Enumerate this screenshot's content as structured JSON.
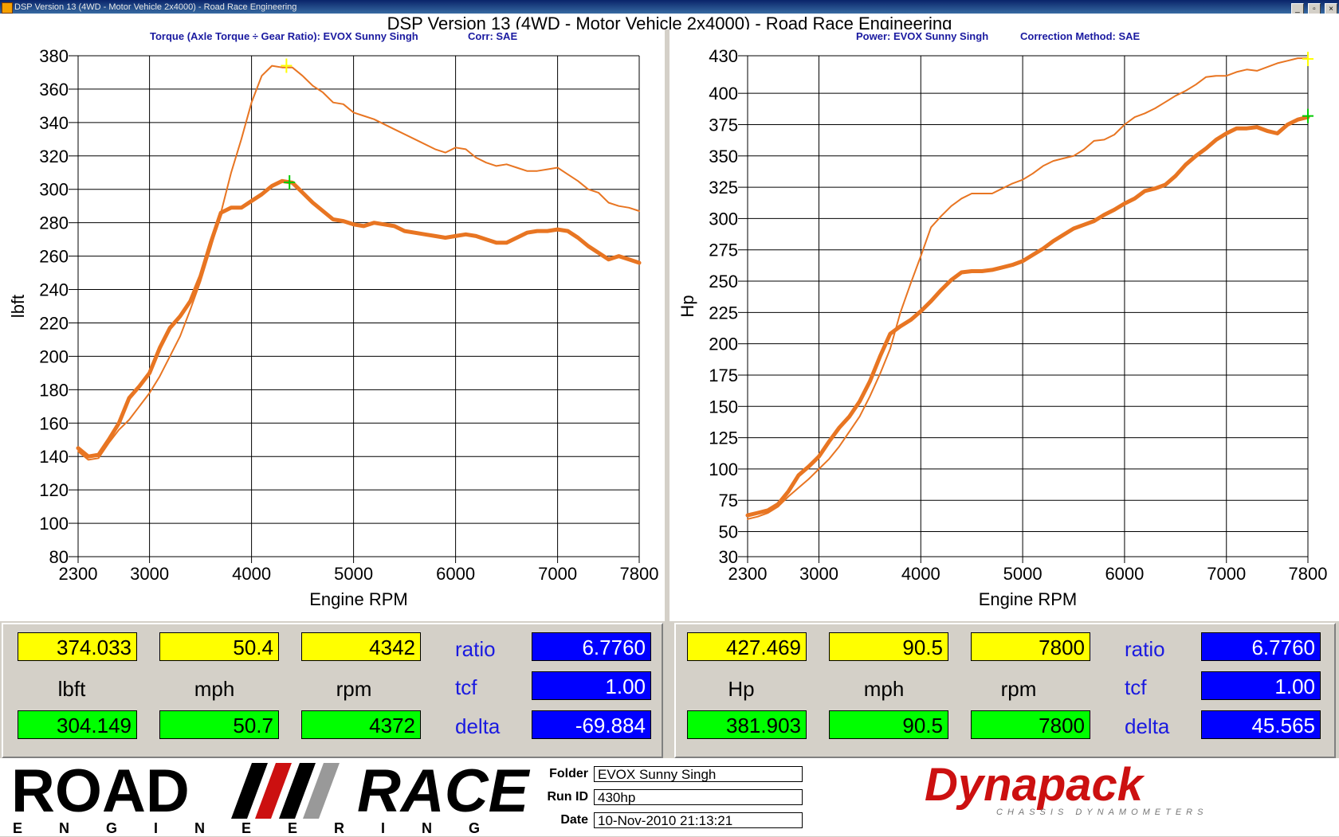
{
  "window": {
    "title": "DSP Version 13 (4WD - Motor Vehicle 2x4000) - Road Race Engineering",
    "buttons": [
      "_",
      "▫",
      "×"
    ]
  },
  "main_title": "DSP Version 13 (4WD - Motor Vehicle 2x4000) - Road Race Engineering",
  "left_subtitle": {
    "a": "Torque (Axle Torque ÷ Gear Ratio): EVOX Sunny Singh",
    "b": "Corr: SAE"
  },
  "right_subtitle": {
    "a": "Power: EVOX Sunny Singh",
    "b": "Correction Method: SAE"
  },
  "chart_data": [
    {
      "type": "line",
      "title": "",
      "xlabel": "Engine RPM",
      "ylabel": "lbft",
      "xlim": [
        2300,
        7800
      ],
      "ylim": [
        80,
        380
      ],
      "xticks": [
        2300,
        3000,
        4000,
        5000,
        6000,
        7000,
        7800
      ],
      "yticks": [
        80,
        100,
        120,
        140,
        160,
        180,
        200,
        220,
        240,
        260,
        280,
        300,
        320,
        340,
        360,
        380
      ],
      "grid": true,
      "color": "#e87522",
      "series": [
        {
          "width": 2,
          "points": [
            [
              2300,
              143
            ],
            [
              2400,
              138
            ],
            [
              2500,
              139
            ],
            [
              2600,
              148
            ],
            [
              2700,
              156
            ],
            [
              2800,
              162
            ],
            [
              2900,
              170
            ],
            [
              3000,
              178
            ],
            [
              3100,
              188
            ],
            [
              3200,
              200
            ],
            [
              3300,
              212
            ],
            [
              3400,
              228
            ],
            [
              3500,
              245
            ],
            [
              3600,
              265
            ],
            [
              3700,
              286
            ],
            [
              3800,
              310
            ],
            [
              3900,
              330
            ],
            [
              4000,
              352
            ],
            [
              4100,
              368
            ],
            [
              4200,
              374
            ],
            [
              4300,
              373
            ],
            [
              4400,
              373
            ],
            [
              4500,
              368
            ],
            [
              4600,
              362
            ],
            [
              4700,
              358
            ],
            [
              4800,
              352
            ],
            [
              4900,
              351
            ],
            [
              5000,
              346
            ],
            [
              5100,
              344
            ],
            [
              5200,
              342
            ],
            [
              5400,
              336
            ],
            [
              5600,
              330
            ],
            [
              5800,
              324
            ],
            [
              5900,
              322
            ],
            [
              6000,
              325
            ],
            [
              6100,
              324
            ],
            [
              6200,
              319
            ],
            [
              6300,
              316
            ],
            [
              6400,
              314
            ],
            [
              6500,
              315
            ],
            [
              6600,
              313
            ],
            [
              6700,
              311
            ],
            [
              6800,
              311
            ],
            [
              6900,
              312
            ],
            [
              7000,
              313
            ],
            [
              7100,
              309
            ],
            [
              7200,
              305
            ],
            [
              7300,
              300
            ],
            [
              7400,
              298
            ],
            [
              7500,
              292
            ],
            [
              7600,
              290
            ],
            [
              7700,
              289
            ],
            [
              7800,
              287
            ]
          ]
        },
        {
          "width": 5,
          "points": [
            [
              2300,
              145
            ],
            [
              2400,
              140
            ],
            [
              2500,
              141
            ],
            [
              2600,
              150
            ],
            [
              2700,
              160
            ],
            [
              2800,
              175
            ],
            [
              2900,
              182
            ],
            [
              3000,
              190
            ],
            [
              3100,
              205
            ],
            [
              3200,
              217
            ],
            [
              3300,
              224
            ],
            [
              3400,
              233
            ],
            [
              3500,
              248
            ],
            [
              3600,
              268
            ],
            [
              3700,
              286
            ],
            [
              3800,
              289
            ],
            [
              3900,
              289
            ],
            [
              4000,
              293
            ],
            [
              4100,
              297
            ],
            [
              4200,
              302
            ],
            [
              4300,
              305
            ],
            [
              4400,
              304
            ],
            [
              4500,
              298
            ],
            [
              4600,
              292
            ],
            [
              4700,
              287
            ],
            [
              4800,
              282
            ],
            [
              4900,
              281
            ],
            [
              5000,
              279
            ],
            [
              5100,
              278
            ],
            [
              5200,
              280
            ],
            [
              5300,
              279
            ],
            [
              5400,
              278
            ],
            [
              5500,
              275
            ],
            [
              5600,
              274
            ],
            [
              5700,
              273
            ],
            [
              5800,
              272
            ],
            [
              5900,
              271
            ],
            [
              6000,
              272
            ],
            [
              6100,
              273
            ],
            [
              6200,
              272
            ],
            [
              6300,
              270
            ],
            [
              6400,
              268
            ],
            [
              6500,
              268
            ],
            [
              6600,
              271
            ],
            [
              6700,
              274
            ],
            [
              6800,
              275
            ],
            [
              6900,
              275
            ],
            [
              7000,
              276
            ],
            [
              7100,
              275
            ],
            [
              7200,
              271
            ],
            [
              7300,
              266
            ],
            [
              7400,
              262
            ],
            [
              7500,
              258
            ],
            [
              7600,
              260
            ],
            [
              7700,
              258
            ],
            [
              7800,
              256
            ]
          ]
        }
      ],
      "markers": [
        {
          "x": 4342,
          "y": 374.033,
          "color": "#ffff00"
        },
        {
          "x": 4372,
          "y": 304.149,
          "color": "#00cc00"
        }
      ]
    },
    {
      "type": "line",
      "title": "",
      "xlabel": "Engine RPM",
      "ylabel": "Hp",
      "xlim": [
        2300,
        7800
      ],
      "ylim": [
        30,
        430
      ],
      "xticks": [
        2300,
        3000,
        4000,
        5000,
        6000,
        7000,
        7800
      ],
      "yticks": [
        30,
        50,
        75,
        100,
        125,
        150,
        175,
        200,
        225,
        250,
        275,
        300,
        325,
        350,
        375,
        400,
        430
      ],
      "grid": true,
      "color": "#e87522",
      "series": [
        {
          "width": 2,
          "points": [
            [
              2300,
              60
            ],
            [
              2400,
              62
            ],
            [
              2500,
              65
            ],
            [
              2600,
              70
            ],
            [
              2700,
              78
            ],
            [
              2800,
              85
            ],
            [
              2900,
              92
            ],
            [
              3000,
              100
            ],
            [
              3100,
              108
            ],
            [
              3200,
              118
            ],
            [
              3300,
              130
            ],
            [
              3400,
              142
            ],
            [
              3500,
              158
            ],
            [
              3600,
              176
            ],
            [
              3700,
              196
            ],
            [
              3800,
              225
            ],
            [
              3900,
              248
            ],
            [
              4000,
              270
            ],
            [
              4100,
              293
            ],
            [
              4200,
              302
            ],
            [
              4300,
              310
            ],
            [
              4400,
              316
            ],
            [
              4500,
              320
            ],
            [
              4600,
              320
            ],
            [
              4700,
              320
            ],
            [
              4800,
              324
            ],
            [
              4900,
              328
            ],
            [
              5000,
              331
            ],
            [
              5100,
              336
            ],
            [
              5200,
              342
            ],
            [
              5300,
              346
            ],
            [
              5400,
              348
            ],
            [
              5500,
              350
            ],
            [
              5600,
              355
            ],
            [
              5700,
              362
            ],
            [
              5800,
              363
            ],
            [
              5900,
              367
            ],
            [
              6000,
              375
            ],
            [
              6100,
              381
            ],
            [
              6200,
              384
            ],
            [
              6300,
              388
            ],
            [
              6400,
              393
            ],
            [
              6500,
              398
            ],
            [
              6600,
              402
            ],
            [
              6700,
              407
            ],
            [
              6800,
              413
            ],
            [
              6900,
              414
            ],
            [
              7000,
              414
            ],
            [
              7100,
              417
            ],
            [
              7200,
              419
            ],
            [
              7300,
              418
            ],
            [
              7400,
              421
            ],
            [
              7500,
              424
            ],
            [
              7600,
              426
            ],
            [
              7700,
              428
            ],
            [
              7800,
              428
            ]
          ]
        },
        {
          "width": 5,
          "points": [
            [
              2300,
              63
            ],
            [
              2400,
              65
            ],
            [
              2500,
              67
            ],
            [
              2600,
              72
            ],
            [
              2700,
              82
            ],
            [
              2800,
              95
            ],
            [
              2900,
              102
            ],
            [
              3000,
              110
            ],
            [
              3100,
              122
            ],
            [
              3200,
              133
            ],
            [
              3300,
              142
            ],
            [
              3400,
              154
            ],
            [
              3500,
              170
            ],
            [
              3600,
              190
            ],
            [
              3700,
              208
            ],
            [
              3800,
              214
            ],
            [
              3900,
              219
            ],
            [
              4000,
              226
            ],
            [
              4100,
              234
            ],
            [
              4200,
              243
            ],
            [
              4300,
              251
            ],
            [
              4400,
              257
            ],
            [
              4500,
              258
            ],
            [
              4600,
              258
            ],
            [
              4700,
              259
            ],
            [
              4800,
              261
            ],
            [
              4900,
              263
            ],
            [
              5000,
              266
            ],
            [
              5100,
              271
            ],
            [
              5200,
              276
            ],
            [
              5300,
              282
            ],
            [
              5400,
              287
            ],
            [
              5500,
              292
            ],
            [
              5600,
              295
            ],
            [
              5700,
              298
            ],
            [
              5800,
              303
            ],
            [
              5900,
              307
            ],
            [
              6000,
              312
            ],
            [
              6100,
              316
            ],
            [
              6200,
              322
            ],
            [
              6300,
              324
            ],
            [
              6400,
              327
            ],
            [
              6500,
              334
            ],
            [
              6600,
              343
            ],
            [
              6700,
              350
            ],
            [
              6800,
              356
            ],
            [
              6900,
              363
            ],
            [
              7000,
              368
            ],
            [
              7100,
              372
            ],
            [
              7200,
              372
            ],
            [
              7300,
              373
            ],
            [
              7400,
              370
            ],
            [
              7500,
              368
            ],
            [
              7600,
              375
            ],
            [
              7700,
              379
            ],
            [
              7800,
              381
            ]
          ]
        }
      ],
      "markers": [
        {
          "x": 7800,
          "y": 427.469,
          "color": "#ffff00"
        },
        {
          "x": 7800,
          "y": 381.903,
          "color": "#00cc00"
        }
      ]
    }
  ],
  "left_readout": {
    "top": [
      "374.033",
      "50.4",
      "4342"
    ],
    "units": [
      "lbft",
      "mph",
      "rpm"
    ],
    "bottom": [
      "304.149",
      "50.7",
      "4372"
    ],
    "params": [
      "ratio",
      "tcf",
      "delta"
    ],
    "param_values": [
      "6.7760",
      "1.00",
      "-69.884"
    ]
  },
  "right_readout": {
    "top": [
      "427.469",
      "90.5",
      "7800"
    ],
    "units": [
      "Hp",
      "mph",
      "rpm"
    ],
    "bottom": [
      "381.903",
      "90.5",
      "7800"
    ],
    "params": [
      "ratio",
      "tcf",
      "delta"
    ],
    "param_values": [
      "6.7760",
      "1.00",
      "45.565"
    ]
  },
  "footer": {
    "logo_road": "ROAD",
    "logo_race": "RACE",
    "logo_engineering": "ENGINEERING",
    "labels": [
      "Folder",
      "Run ID",
      "Date"
    ],
    "values": [
      "EVOX Sunny Singh",
      "430hp",
      "10-Nov-2010 21:13:21"
    ],
    "dynapack": "Dynapack",
    "dynapack_sub": "CHASSIS DYNAMOMETERS"
  }
}
